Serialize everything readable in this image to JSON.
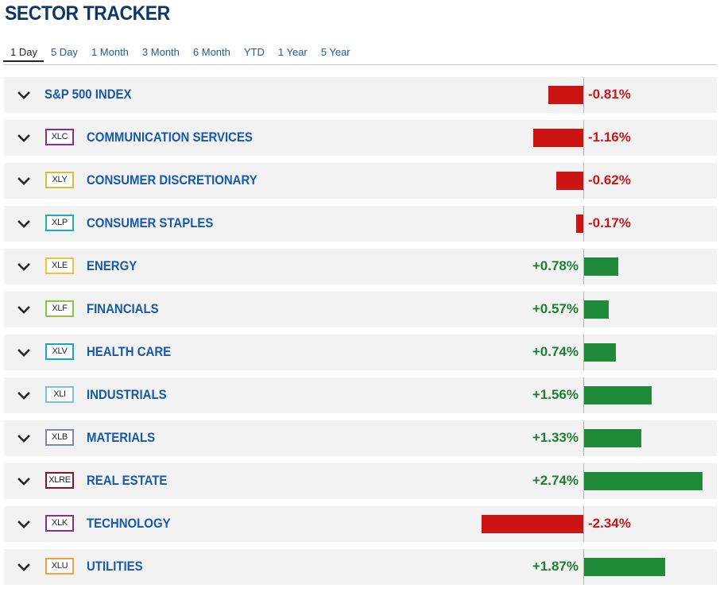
{
  "title": "SECTOR TRACKER",
  "tabs": [
    "1 Day",
    "5 Day",
    "1 Month",
    "3 Month",
    "6 Month",
    "YTD",
    "1 Year",
    "5 Year"
  ],
  "active_tab": 0,
  "colors": {
    "negative": "#cc1512",
    "positive": "#1f8a38",
    "negative_text": "#c9181a",
    "positive_text": "#1e7f34"
  },
  "chart_data": {
    "type": "bar",
    "orientation": "horizontal-diverging",
    "categories": [
      "S&P 500 INDEX",
      "COMMUNICATION SERVICES",
      "CONSUMER DISCRETIONARY",
      "CONSUMER STAPLES",
      "ENERGY",
      "FINANCIALS",
      "HEALTH CARE",
      "INDUSTRIALS",
      "MATERIALS",
      "REAL ESTATE",
      "TECHNOLOGY",
      "UTILITIES"
    ],
    "tickers": [
      "",
      "XLC",
      "XLY",
      "XLP",
      "XLE",
      "XLF",
      "XLV",
      "XLI",
      "XLB",
      "XLRE",
      "XLK",
      "XLU"
    ],
    "ticker_colors": [
      "",
      "#8c2c8c",
      "#c7c832",
      "#1ab0c4",
      "#f2c23a",
      "#8cc63f",
      "#16a3d8",
      "#7cc0e8",
      "#7a88c0",
      "#8c1028",
      "#8c2c8c",
      "#f2a23a"
    ],
    "values": [
      -0.81,
      -1.16,
      -0.62,
      -0.17,
      0.78,
      0.57,
      0.74,
      1.56,
      1.33,
      2.74,
      -2.34,
      1.87
    ],
    "labels": [
      "-0.81%",
      "-1.16%",
      "-0.62%",
      "-0.17%",
      "+0.78%",
      "+0.57%",
      "+0.74%",
      "+1.56%",
      "+1.33%",
      "+2.74%",
      "-2.34%",
      "+1.87%"
    ]
  }
}
